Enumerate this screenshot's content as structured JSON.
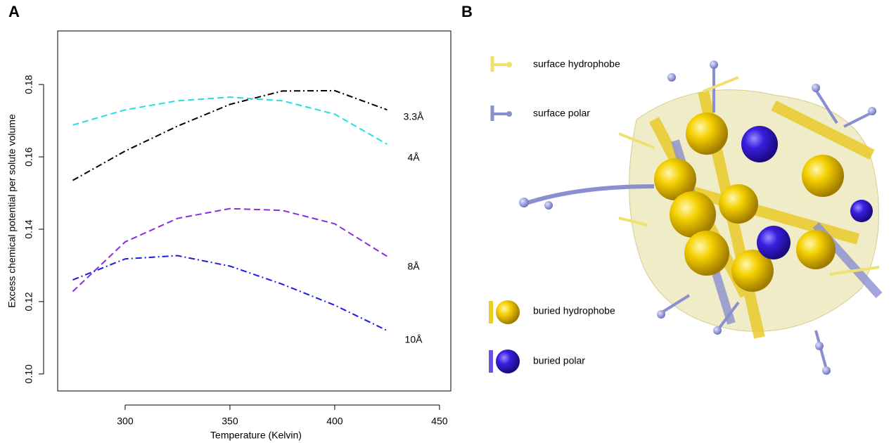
{
  "panel_labels": [
    "A",
    "B"
  ],
  "chart_data": {
    "type": "line",
    "xlabel": "Temperature (Kelvin)",
    "ylabel": "Excess chemical potential per solute volume",
    "x": [
      275,
      300,
      325,
      350,
      375,
      400,
      425
    ],
    "series": [
      {
        "name": "3.3Å",
        "color": "#000000",
        "dash": "dashdot",
        "values": [
          0.1535,
          0.1616,
          0.1685,
          0.1745,
          0.1782,
          0.1783,
          0.173
        ]
      },
      {
        "name": "4Å",
        "color": "#22e0e0",
        "dash": "dashed",
        "values": [
          0.1688,
          0.173,
          0.1755,
          0.1765,
          0.1755,
          0.1718,
          0.1635
        ]
      },
      {
        "name": "8Å",
        "color": "#8a2be2",
        "dash": "dashed",
        "values": [
          0.1228,
          0.1365,
          0.143,
          0.1457,
          0.1452,
          0.1415,
          0.1325
        ]
      },
      {
        "name": "10Å",
        "color": "#1a1ae6",
        "dash": "dashdot",
        "values": [
          0.126,
          0.1318,
          0.1327,
          0.1298,
          0.1248,
          0.119,
          0.112
        ]
      }
    ],
    "xlim": [
      267.8,
      455.4
    ],
    "ylim": [
      0.0953,
      0.1948
    ],
    "xticks": [
      300,
      350,
      400,
      450
    ],
    "yticks": [
      {
        "value": 0.1,
        "label": "0.10"
      },
      0.12,
      0.14,
      0.16,
      0.18
    ]
  },
  "legend_b": [
    "surface hydrophobe",
    "surface polar",
    "buried hydrophobe",
    "buried polar"
  ]
}
